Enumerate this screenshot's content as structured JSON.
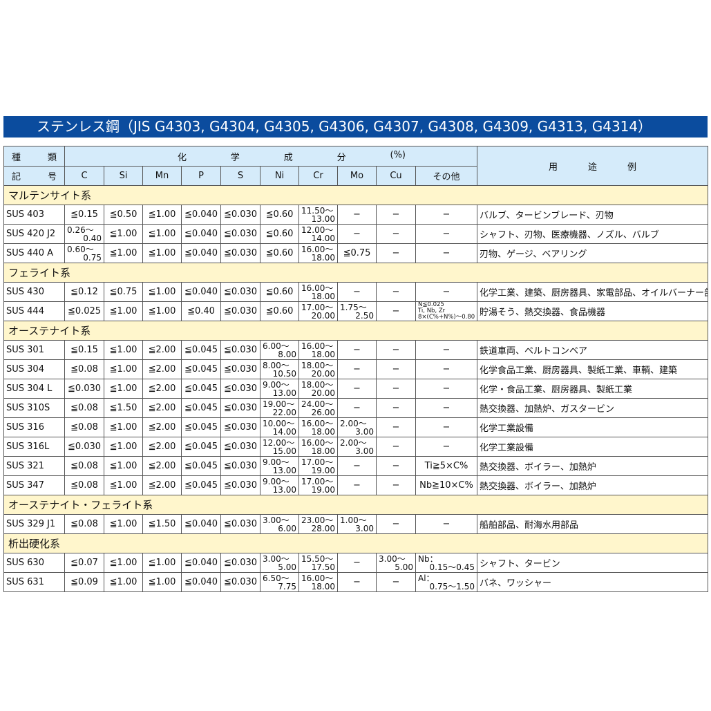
{
  "title": "ステンレス鋼（JIS G4303, G4304, G4305, G4306, G4307, G4308, G4309, G4313, G4314）",
  "header": {
    "type_label": [
      "種",
      "類"
    ],
    "symbol_label": [
      "記",
      "号"
    ],
    "chem_label": [
      "化",
      "学",
      "成",
      "分",
      "(%)"
    ],
    "use_label": [
      "用",
      "途",
      "例"
    ],
    "elements": [
      "C",
      "Si",
      "Mn",
      "P",
      "S",
      "Ni",
      "Cr",
      "Mo",
      "Cu",
      "その他"
    ]
  },
  "groups": [
    {
      "name": "マルテンサイト系",
      "rows": [
        {
          "grade": "SUS 403",
          "v": [
            "≦0.15",
            "≦0.50",
            "≦1.00",
            "≦0.040",
            "≦0.030",
            "≦0.60",
            [
              "11.50〜",
              "13.00"
            ],
            "−",
            "−",
            "−"
          ],
          "use": "バルブ、タービンブレード、刃物"
        },
        {
          "grade": "SUS 420 J2",
          "v": [
            [
              "0.26〜",
              "0.40"
            ],
            "≦1.00",
            "≦1.00",
            "≦0.040",
            "≦0.030",
            "≦0.60",
            [
              "12.00〜",
              "14.00"
            ],
            "−",
            "−",
            "−"
          ],
          "use": "シャフト、刃物、医療機器、ノズル、バルブ"
        },
        {
          "grade": "SUS 440 A",
          "v": [
            [
              "0.60〜",
              "0.75"
            ],
            "≦1.00",
            "≦1.00",
            "≦0.040",
            "≦0.030",
            "≦0.60",
            [
              "16.00〜",
              "18.00"
            ],
            "≦0.75",
            "−",
            "−"
          ],
          "use": "刃物、ゲージ、ベアリング"
        }
      ]
    },
    {
      "name": "フェライト系",
      "rows": [
        {
          "grade": "SUS 430",
          "v": [
            "≦0.12",
            "≦0.75",
            "≦1.00",
            "≦0.040",
            "≦0.030",
            "≦0.60",
            [
              "16.00〜",
              "18.00"
            ],
            "−",
            "−",
            "−"
          ],
          "use": "化学工業、建築、厨房器具、家電部品、オイルバーナー部品"
        },
        {
          "grade": "SUS 444",
          "v": [
            "≦0.025",
            "≦1.00",
            "≦1.00",
            "≦0.40",
            "≦0.030",
            "≦0.60",
            [
              "17.00〜",
              "20.00"
            ],
            [
              "1.75〜",
              "2.50"
            ],
            "−",
            {
              "small": [
                "N≦0.025",
                "Ti, Nb, Zr",
                "8×(C%+N%)〜0.80"
              ]
            }
          ],
          "use": "貯湯そう、熱交換器、食品機器"
        }
      ]
    },
    {
      "name": "オーステナイト系",
      "rows": [
        {
          "grade": "SUS 301",
          "v": [
            "≦0.15",
            "≦1.00",
            "≦2.00",
            "≦0.045",
            "≦0.030",
            [
              "6.00〜",
              "8.00"
            ],
            [
              "16.00〜",
              "18.00"
            ],
            "−",
            "−",
            "−"
          ],
          "use": "鉄道車両、ベルトコンベア"
        },
        {
          "grade": "SUS 304",
          "v": [
            "≦0.08",
            "≦1.00",
            "≦2.00",
            "≦0.045",
            "≦0.030",
            [
              "8.00〜",
              "10.50"
            ],
            [
              "18.00〜",
              "20.00"
            ],
            "−",
            "−",
            "−"
          ],
          "use": "化学食品工業、厨房器具、製紙工業、車輌、建築"
        },
        {
          "grade": "SUS 304 L",
          "v": [
            "≦0.030",
            "≦1.00",
            "≦2.00",
            "≦0.045",
            "≦0.030",
            [
              "9.00〜",
              "13.00"
            ],
            [
              "18.00〜",
              "20.00"
            ],
            "−",
            "−",
            "−"
          ],
          "use": "化学・食品工業、厨房器具、製紙工業"
        },
        {
          "grade": "SUS 310S",
          "v": [
            "≦0.08",
            "≦1.50",
            "≦2.00",
            "≦0.045",
            "≦0.030",
            [
              "19.00〜",
              "22.00"
            ],
            [
              "24.00〜",
              "26.00"
            ],
            "−",
            "−",
            "−"
          ],
          "use": "熱交換器、加熱炉、ガスタービン"
        },
        {
          "grade": "SUS 316",
          "v": [
            "≦0.08",
            "≦1.00",
            "≦2.00",
            "≦0.045",
            "≦0.030",
            [
              "10.00〜",
              "14.00"
            ],
            [
              "16.00〜",
              "18.00"
            ],
            [
              "2.00〜",
              "3.00"
            ],
            "−",
            "−"
          ],
          "use": "化学工業設備"
        },
        {
          "grade": "SUS 316L",
          "v": [
            "≦0.030",
            "≦1.00",
            "≦2.00",
            "≦0.045",
            "≦0.030",
            [
              "12.00〜",
              "15.00"
            ],
            [
              "16.00〜",
              "18.00"
            ],
            [
              "2.00〜",
              "3.00"
            ],
            "−",
            "−"
          ],
          "use": "化学工業設備"
        },
        {
          "grade": "SUS 321",
          "v": [
            "≦0.08",
            "≦1.00",
            "≦2.00",
            "≦0.045",
            "≦0.030",
            [
              "9.00〜",
              "13.00"
            ],
            [
              "17.00〜",
              "19.00"
            ],
            "−",
            "−",
            "Ti≧5×C%"
          ],
          "use": "熱交換器、ボイラー、加熱炉"
        },
        {
          "grade": "SUS 347",
          "v": [
            "≦0.08",
            "≦1.00",
            "≦2.00",
            "≦0.045",
            "≦0.030",
            [
              "9.00〜",
              "13.00"
            ],
            [
              "17.00〜",
              "19.00"
            ],
            "−",
            "−",
            "Nb≧10×C%"
          ],
          "use": "熱交換器、ボイラー、加熱炉"
        }
      ]
    },
    {
      "name": "オーステナイト・フェライト系",
      "rows": [
        {
          "grade": "SUS 329 J1",
          "v": [
            "≦0.08",
            "≦1.00",
            "≦1.50",
            "≦0.040",
            "≦0.030",
            [
              "3.00〜",
              "6.00"
            ],
            [
              "23.00〜",
              "28.00"
            ],
            [
              "1.00〜",
              "3.00"
            ],
            "−",
            "−"
          ],
          "use": "船舶部品、耐海水用部品"
        }
      ]
    },
    {
      "name": "析出硬化系",
      "rows": [
        {
          "grade": "SUS 630",
          "v": [
            "≦0.07",
            "≦1.00",
            "≦1.00",
            "≦0.040",
            "≦0.030",
            [
              "3.00〜",
              "5.00"
            ],
            [
              "15.50〜",
              "17.50"
            ],
            "−",
            [
              "3.00〜",
              "5.00"
            ],
            [
              "Nb：",
              "0.15〜0.45"
            ]
          ],
          "use": "シャフト、タービン"
        },
        {
          "grade": "SUS 631",
          "v": [
            "≦0.09",
            "≦1.00",
            "≦1.00",
            "≦0.040",
            "≦0.030",
            [
              "6.50〜",
              "7.75"
            ],
            [
              "16.00〜",
              "18.00"
            ],
            "−",
            "−",
            [
              "Al：",
              "0.75〜1.50"
            ]
          ],
          "use": "バネ、ワッシャー"
        }
      ]
    }
  ]
}
